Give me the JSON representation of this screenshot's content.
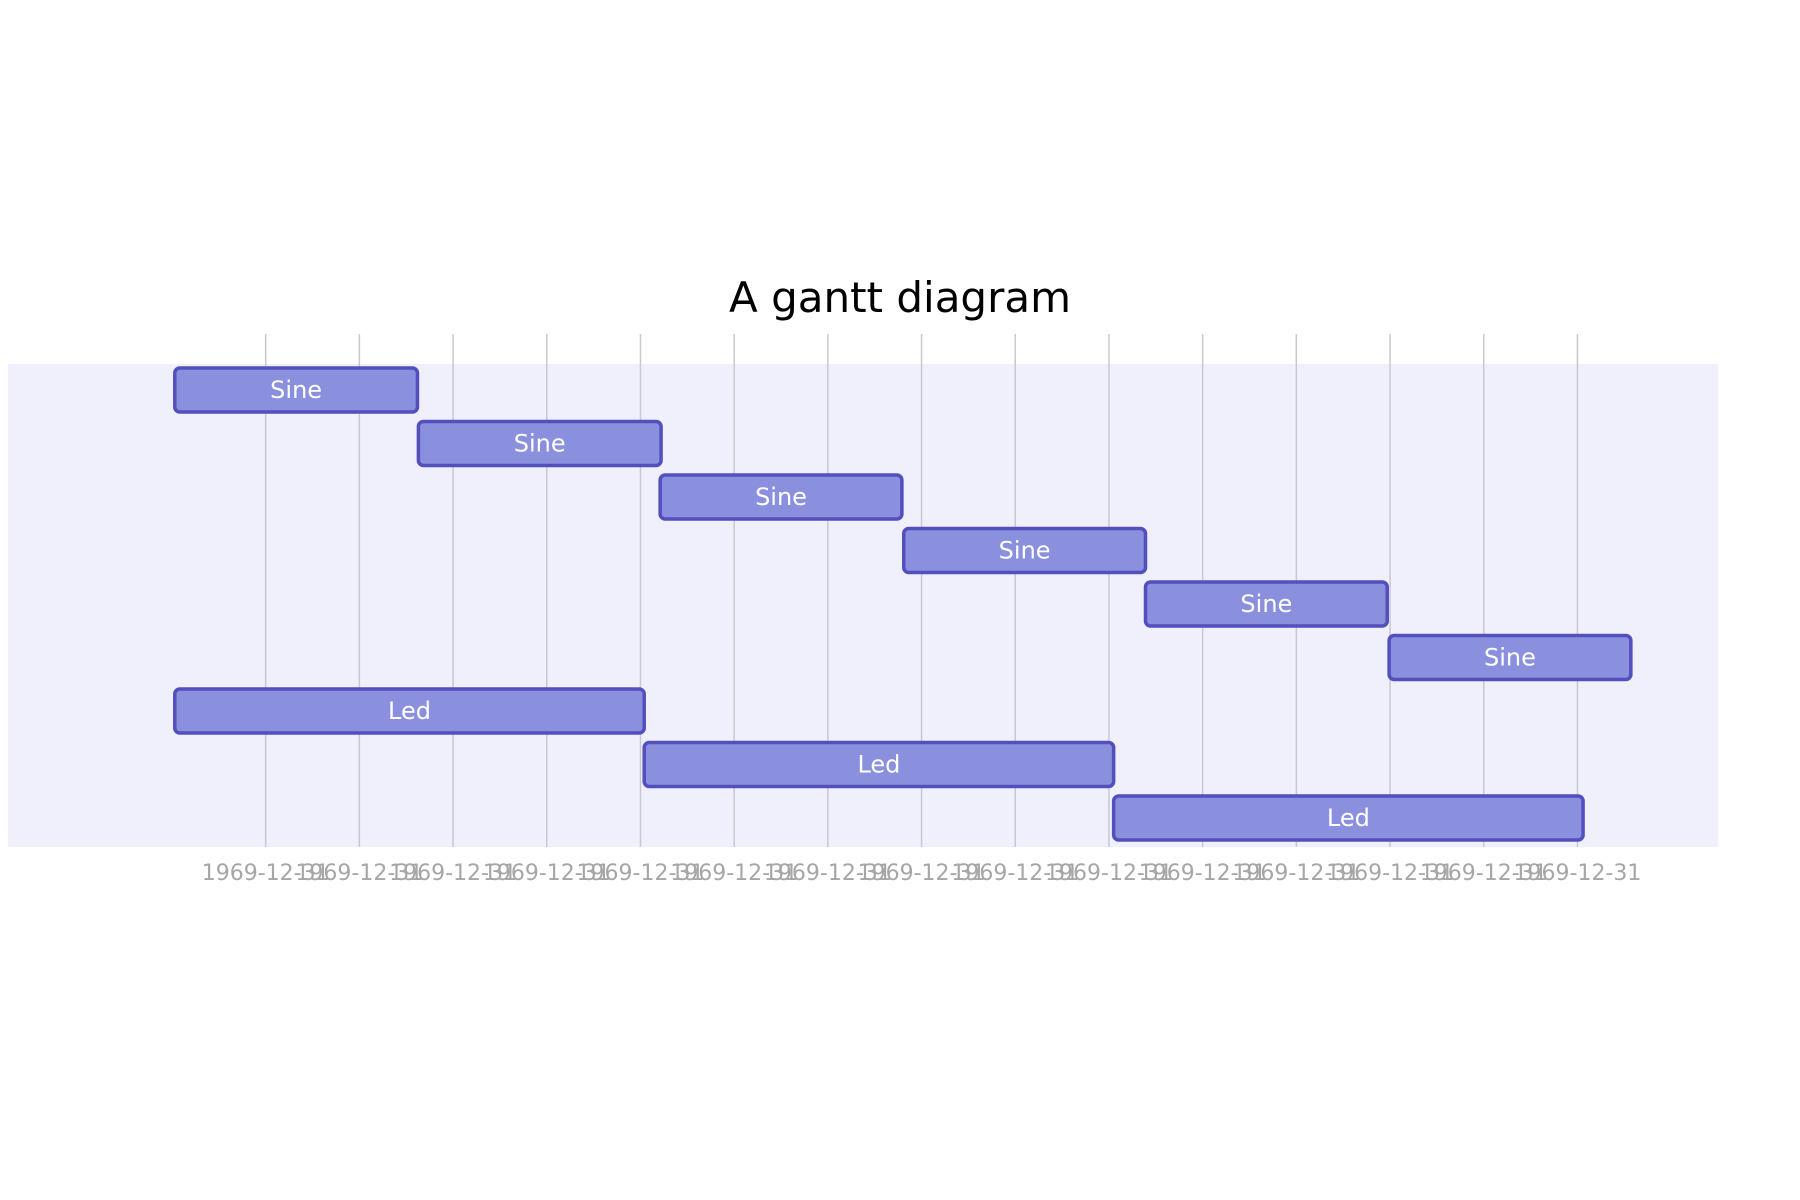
{
  "colors": {
    "section_band": "#eff0fb",
    "grid_line": "#c8c8cf",
    "bar_fill": "#8a90dd",
    "bar_stroke": "#534fbc",
    "bar_text": "#ffffff",
    "tick_text": "#a6a6a6",
    "title_text": "#000000"
  },
  "chart_data": {
    "type": "gantt",
    "title": "A gantt diagram",
    "axis_format": "date",
    "tick_labels": [
      "1969-12-31",
      "1969-12-31",
      "1969-12-31",
      "1969-12-31",
      "1969-12-31",
      "1969-12-31",
      "1969-12-31",
      "1969-12-31",
      "1969-12-31",
      "1969-12-31",
      "1969-12-31",
      "1969-12-31",
      "1969-12-31",
      "1969-12-31",
      "1969-12-31"
    ],
    "tasks": [
      {
        "label": "Sine",
        "start": -0.97,
        "end": 1.62
      },
      {
        "label": "Sine",
        "start": 1.63,
        "end": 4.22
      },
      {
        "label": "Sine",
        "start": 4.21,
        "end": 6.79
      },
      {
        "label": "Sine",
        "start": 6.81,
        "end": 9.39
      },
      {
        "label": "Sine",
        "start": 9.39,
        "end": 11.97
      },
      {
        "label": "Sine",
        "start": 11.99,
        "end": 14.57
      },
      {
        "label": "Led",
        "start": -0.97,
        "end": 4.04
      },
      {
        "label": "Led",
        "start": 4.04,
        "end": 9.05
      },
      {
        "label": "Led",
        "start": 9.05,
        "end": 14.06
      }
    ],
    "x_range": [
      -2.75,
      15.5
    ],
    "ticks": [
      0,
      1,
      2,
      3,
      4,
      5,
      6,
      7,
      8,
      9,
      10,
      11,
      12,
      13,
      14
    ],
    "grid": true
  }
}
